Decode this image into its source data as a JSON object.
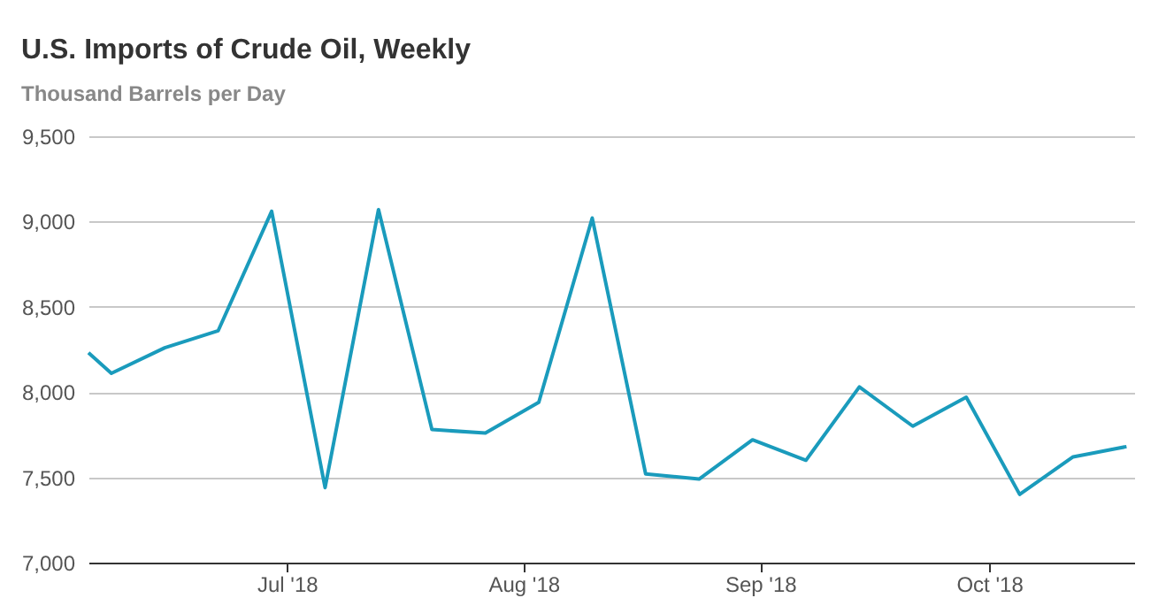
{
  "chart_data": {
    "type": "line",
    "title": "U.S. Imports of Crude Oil, Weekly",
    "subtitle": "Thousand Barrels per Day",
    "x": [
      "2018-06-05",
      "2018-06-08",
      "2018-06-15",
      "2018-06-22",
      "2018-06-29",
      "2018-07-06",
      "2018-07-13",
      "2018-07-20",
      "2018-07-27",
      "2018-08-03",
      "2018-08-10",
      "2018-08-17",
      "2018-08-24",
      "2018-08-31",
      "2018-09-07",
      "2018-09-14",
      "2018-09-21",
      "2018-09-28",
      "2018-10-05",
      "2018-10-12",
      "2018-10-19"
    ],
    "series": [
      {
        "color": "#1a9bbc",
        "values": [
          8230,
          8110,
          8260,
          8360,
          9060,
          7440,
          9070,
          7780,
          7760,
          7940,
          9020,
          7520,
          7490,
          7720,
          7600,
          8030,
          7800,
          7970,
          7400,
          7620,
          7680
        ]
      }
    ],
    "xlim": [
      "2018-06-05",
      "2018-10-20"
    ],
    "xticks": [
      {
        "value": "2018-07-01",
        "label": "Jul '18"
      },
      {
        "value": "2018-08-01",
        "label": "Aug '18"
      },
      {
        "value": "2018-09-01",
        "label": "Sep '18"
      },
      {
        "value": "2018-10-01",
        "label": "Oct '18"
      }
    ],
    "ylim": [
      7000,
      9500
    ],
    "yticks": [
      {
        "value": 7000,
        "label": "7,000"
      },
      {
        "value": 7500,
        "label": "7,500"
      },
      {
        "value": 8000,
        "label": "8,000"
      },
      {
        "value": 8500,
        "label": "8,500"
      },
      {
        "value": 9000,
        "label": "9,000"
      },
      {
        "value": 9500,
        "label": "9,500"
      }
    ],
    "grid": "y",
    "legend": false,
    "marker": "none",
    "line_style": "solid"
  }
}
